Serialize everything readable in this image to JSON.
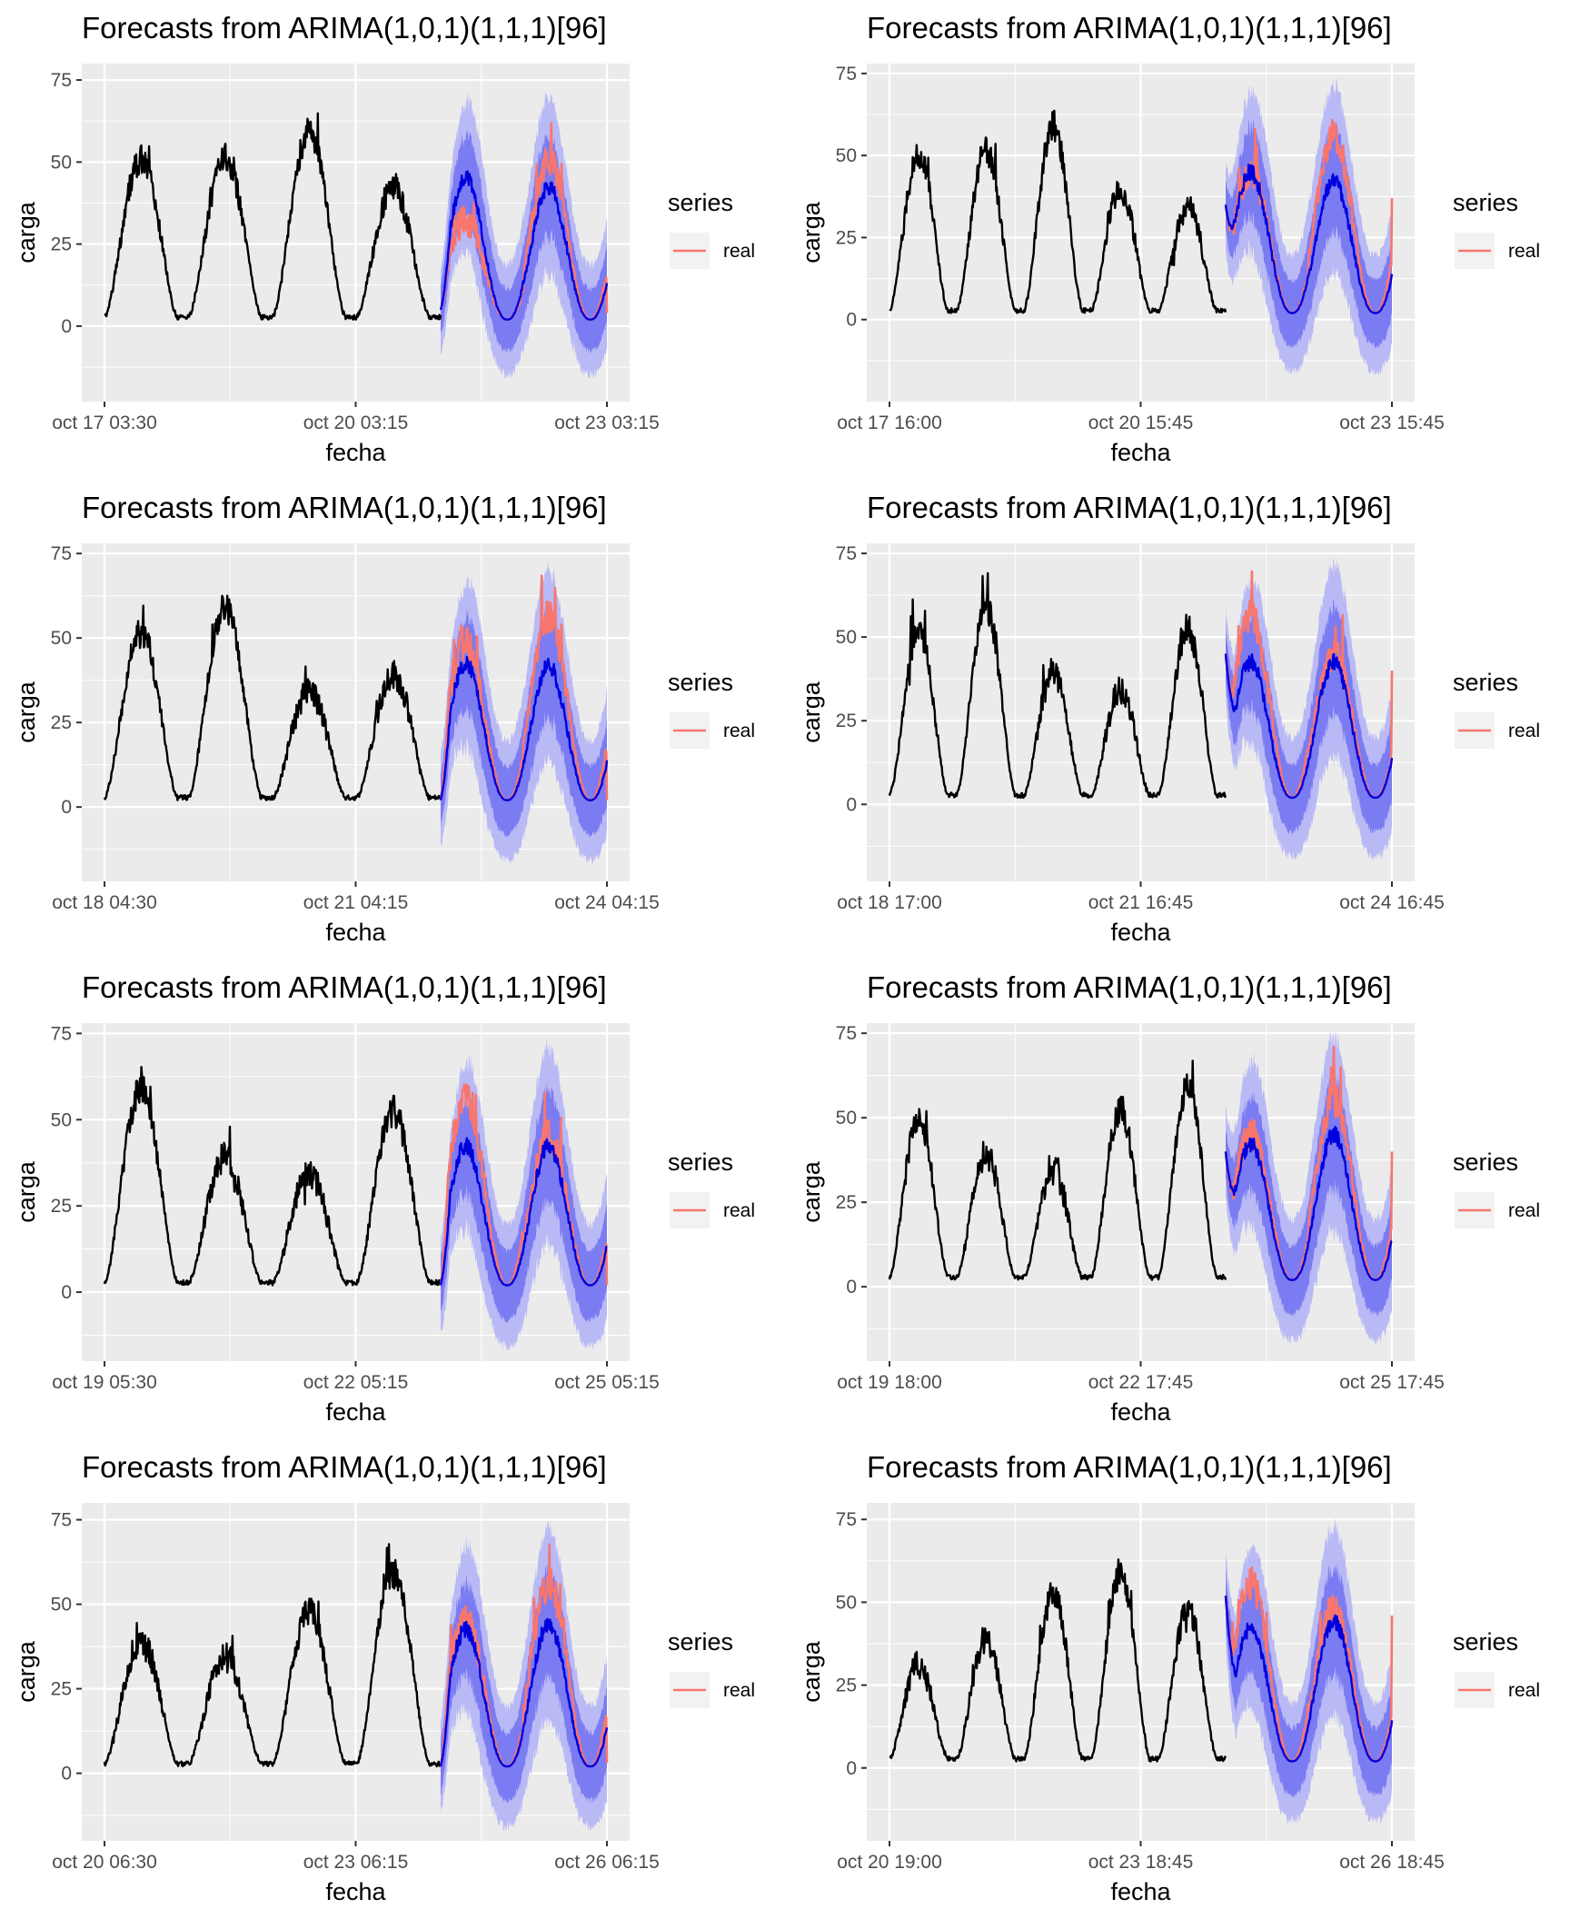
{
  "colors": {
    "background": "#ffffff",
    "panel_bg": "#ebebeb",
    "grid": "#ffffff",
    "observed": "#000000",
    "forecast_mean": "#0000dd",
    "band_80": "#7b7bf2",
    "band_95": "#b9b9f6",
    "real": "#f8766d"
  },
  "chart_data": [
    {
      "type": "line",
      "title": "Forecasts from ARIMA(1,0,1)(1,1,1)[96]",
      "xlabel": "fecha",
      "ylabel": "carga",
      "xticks": [
        "oct 17 03:30",
        "oct 20 03:15",
        "oct 23 03:15"
      ],
      "yticks": [
        0,
        25,
        50,
        75
      ],
      "ylim": [
        -23,
        80
      ],
      "legend": {
        "title": "series",
        "entries": [
          "real"
        ],
        "position": "right"
      },
      "observed_peaks": [
        62,
        63,
        72,
        52
      ],
      "forecast_day_peaks": [
        53,
        50
      ],
      "real_day_peaks": [
        42,
        65
      ],
      "real_start": 5,
      "band_spread": 15,
      "end_value": 4
    },
    {
      "type": "line",
      "title": "Forecasts from ARIMA(1,0,1)(1,1,1)[96]",
      "xlabel": "fecha",
      "ylabel": "carga",
      "xticks": [
        "oct 17 16:00",
        "oct 20 15:45",
        "oct 23 15:45"
      ],
      "yticks": [
        0,
        25,
        50,
        75
      ],
      "ylim": [
        -25,
        78
      ],
      "legend": {
        "title": "series",
        "entries": [
          "real"
        ],
        "position": "right"
      },
      "observed_peaks": [
        61,
        63,
        72,
        48,
        42
      ],
      "forecast_day_peaks": [
        53,
        50
      ],
      "real_day_peaks": [
        58,
        72
      ],
      "real_start": 35,
      "band_spread": 16,
      "end_value": 37
    },
    {
      "type": "line",
      "title": "Forecasts from ARIMA(1,0,1)(1,1,1)[96]",
      "xlabel": "fecha",
      "ylabel": "carga",
      "xticks": [
        "oct 18 04:30",
        "oct 21 04:15",
        "oct 24 04:15"
      ],
      "yticks": [
        0,
        25,
        50,
        75
      ],
      "ylim": [
        -22,
        78
      ],
      "legend": {
        "title": "series",
        "entries": [
          "real"
        ],
        "position": "right"
      },
      "observed_peaks": [
        63,
        72,
        42,
        48
      ],
      "forecast_day_peaks": [
        50,
        49
      ],
      "real_day_peaks": [
        62,
        72
      ],
      "real_start": 2,
      "band_spread": 16,
      "end_value": 2
    },
    {
      "type": "line",
      "title": "Forecasts from ARIMA(1,0,1)(1,1,1)[96]",
      "xlabel": "fecha",
      "ylabel": "carga",
      "xticks": [
        "oct 18 17:00",
        "oct 21 16:45",
        "oct 24 16:45"
      ],
      "yticks": [
        0,
        25,
        50,
        75
      ],
      "ylim": [
        -23,
        78
      ],
      "legend": {
        "title": "series",
        "entries": [
          "real"
        ],
        "position": "right"
      },
      "observed_peaks": [
        62,
        72,
        48,
        42,
        64
      ],
      "forecast_day_peaks": [
        50,
        50
      ],
      "real_day_peaks": [
        72,
        58
      ],
      "real_start": 45,
      "band_spread": 16,
      "end_value": 40
    },
    {
      "type": "line",
      "title": "Forecasts from ARIMA(1,0,1)(1,1,1)[96]",
      "xlabel": "fecha",
      "ylabel": "carga",
      "xticks": [
        "oct 19 05:30",
        "oct 22 05:15",
        "oct 25 05:15"
      ],
      "yticks": [
        0,
        25,
        50,
        75
      ],
      "ylim": [
        -20,
        78
      ],
      "legend": {
        "title": "series",
        "entries": [
          "real"
        ],
        "position": "right"
      },
      "observed_peaks": [
        72,
        48,
        42,
        64
      ],
      "forecast_day_peaks": [
        50,
        50
      ],
      "real_day_peaks": [
        72,
        58
      ],
      "real_start": 2,
      "band_spread": 16,
      "end_value": 2
    },
    {
      "type": "line",
      "title": "Forecasts from ARIMA(1,0,1)(1,1,1)[96]",
      "xlabel": "fecha",
      "ylabel": "carga",
      "xticks": [
        "oct 19 18:00",
        "oct 22 17:45",
        "oct 25 17:45"
      ],
      "yticks": [
        0,
        25,
        50,
        75
      ],
      "ylim": [
        -22,
        78
      ],
      "legend": {
        "title": "series",
        "entries": [
          "real"
        ],
        "position": "right"
      },
      "observed_peaks": [
        61,
        48,
        42,
        64,
        72
      ],
      "forecast_day_peaks": [
        50,
        53
      ],
      "real_day_peaks": [
        58,
        71
      ],
      "real_start": 40,
      "band_spread": 16,
      "end_value": 40
    },
    {
      "type": "line",
      "title": "Forecasts from ARIMA(1,0,1)(1,1,1)[96]",
      "xlabel": "fecha",
      "ylabel": "carga",
      "xticks": [
        "oct 20 06:30",
        "oct 23 06:15",
        "oct 26 06:15"
      ],
      "yticks": [
        0,
        25,
        50,
        75
      ],
      "ylim": [
        -20,
        80
      ],
      "legend": {
        "title": "series",
        "entries": [
          "real"
        ],
        "position": "right"
      },
      "observed_peaks": [
        48,
        42,
        58,
        72
      ],
      "forecast_day_peaks": [
        50,
        52
      ],
      "real_day_peaks": [
        58,
        72
      ],
      "real_start": 2,
      "band_spread": 16,
      "end_value": 3
    },
    {
      "type": "line",
      "title": "Forecasts from ARIMA(1,0,1)(1,1,1)[96]",
      "xlabel": "fecha",
      "ylabel": "carga",
      "xticks": [
        "oct 20 19:00",
        "oct 23 18:45",
        "oct 26 18:45"
      ],
      "yticks": [
        0,
        25,
        50,
        75
      ],
      "ylim": [
        -22,
        80
      ],
      "legend": {
        "title": "series",
        "entries": [
          "real"
        ],
        "position": "right"
      },
      "observed_peaks": [
        38,
        48,
        64,
        72,
        58
      ],
      "forecast_day_peaks": [
        50,
        52
      ],
      "real_day_peaks": [
        72,
        62
      ],
      "real_start": 52,
      "band_spread": 16,
      "end_value": 46
    }
  ]
}
